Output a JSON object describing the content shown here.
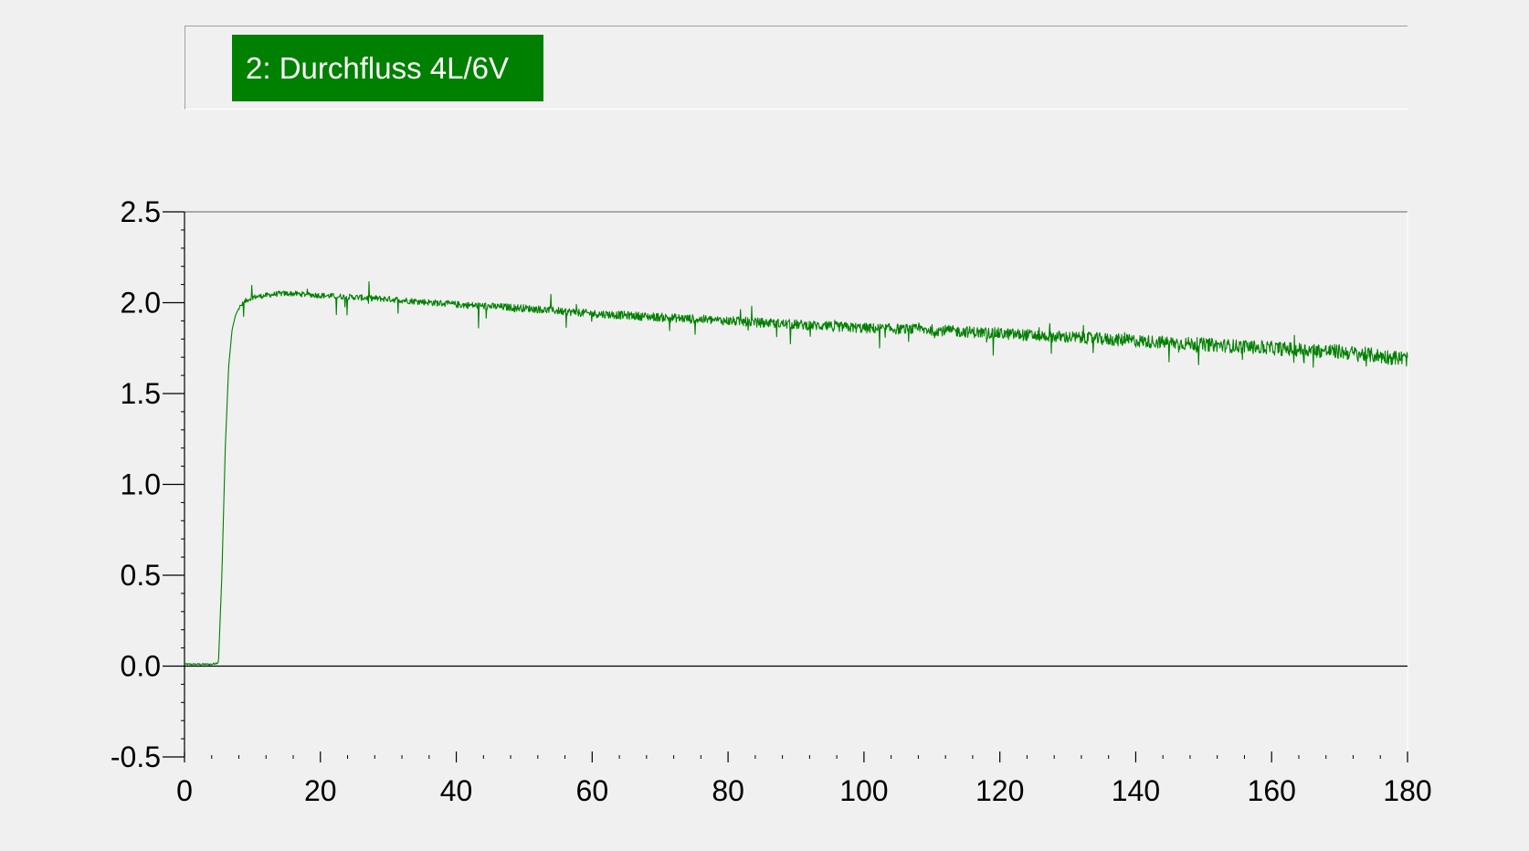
{
  "legend": {
    "series_label": "2: Durchfluss 4L/6V",
    "series_color": "#008000"
  },
  "chart_data": {
    "type": "line",
    "title": "",
    "xlabel": "",
    "ylabel": "",
    "xlim": [
      0,
      180
    ],
    "ylim": [
      -0.5,
      2.5
    ],
    "x_ticks": [
      0,
      20,
      40,
      60,
      80,
      100,
      120,
      140,
      160,
      180
    ],
    "x_tick_labels": [
      "0",
      "20",
      "40",
      "60",
      "80",
      "100",
      "120",
      "140",
      "160",
      "180"
    ],
    "y_ticks": [
      -0.5,
      0.0,
      0.5,
      1.0,
      1.5,
      2.0,
      2.5
    ],
    "y_tick_labels": [
      "-0.5",
      "0.0",
      "0.5",
      "1.0",
      "1.5",
      "2.0",
      "2.5"
    ],
    "zero_line": true,
    "grid": false,
    "legend_position": "top-left",
    "series": [
      {
        "name": "2: Durchfluss 4L/6V",
        "color": "#008000",
        "x": [
          0,
          2,
          4,
          5,
          5.5,
          6,
          6.5,
          7,
          7.5,
          8,
          9,
          10,
          12,
          14,
          16,
          20,
          25,
          30,
          40,
          50,
          60,
          70,
          80,
          90,
          100,
          110,
          120,
          130,
          140,
          150,
          160,
          170,
          180
        ],
        "y": [
          0.01,
          0.01,
          0.01,
          0.02,
          0.5,
          1.2,
          1.65,
          1.85,
          1.93,
          1.97,
          2.01,
          2.03,
          2.04,
          2.05,
          2.05,
          2.04,
          2.03,
          2.02,
          1.99,
          1.97,
          1.94,
          1.92,
          1.9,
          1.88,
          1.86,
          1.85,
          1.83,
          1.81,
          1.79,
          1.77,
          1.75,
          1.73,
          1.69
        ]
      }
    ]
  }
}
